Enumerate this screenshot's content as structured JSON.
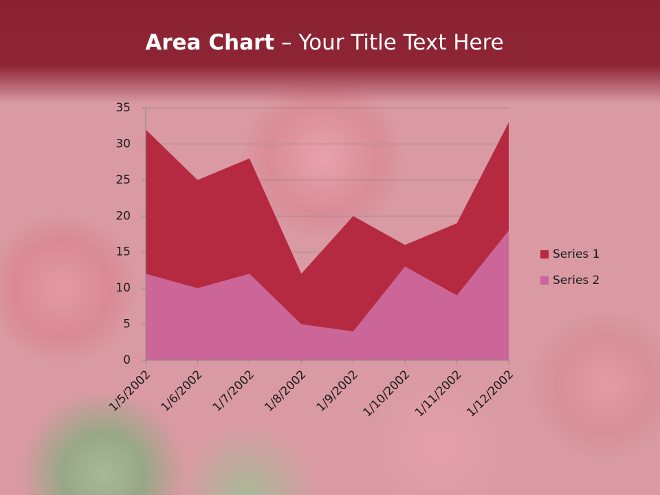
{
  "chart_data": {
    "type": "area",
    "title": "Area Chart",
    "title_rest": "– Your Title Text Here",
    "categories": [
      "1/5/2002",
      "1/6/2002",
      "1/7/2002",
      "1/8/2002",
      "1/9/2002",
      "1/10/2002",
      "1/11/2002",
      "1/12/2002"
    ],
    "series": [
      {
        "name": "Series 1",
        "color": "#b52a40",
        "values": [
          32,
          25,
          28,
          12,
          20,
          16,
          19,
          33
        ]
      },
      {
        "name": "Series 2",
        "color": "#cc6699",
        "values": [
          12,
          10,
          12,
          5,
          4,
          13,
          9,
          18
        ]
      }
    ],
    "ylim": [
      0,
      35
    ],
    "yticks": [
      0,
      5,
      10,
      15,
      20,
      25,
      30,
      35
    ],
    "grid": true,
    "legend": "right"
  }
}
